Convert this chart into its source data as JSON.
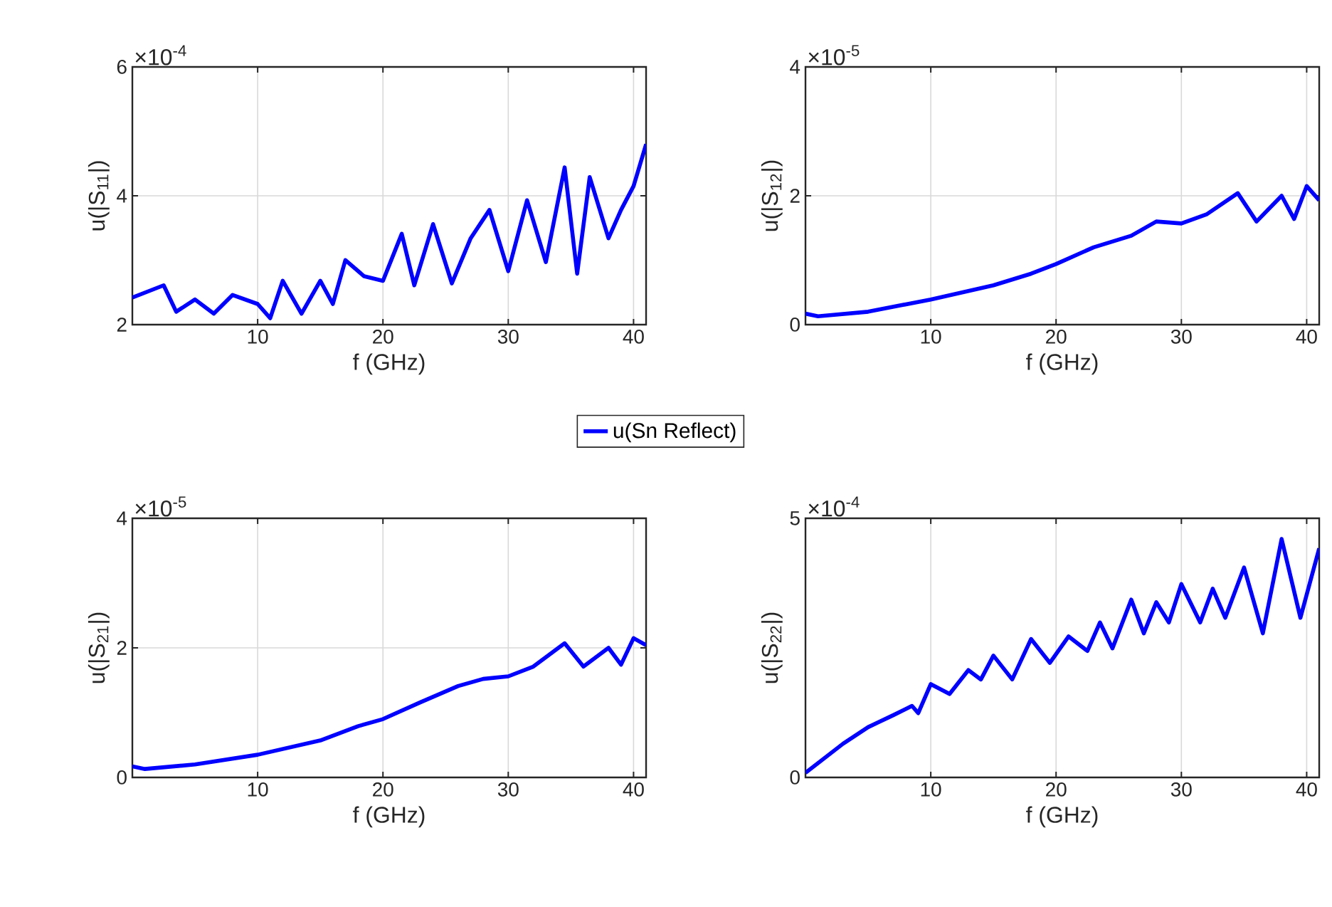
{
  "chart_data": [
    {
      "type": "line",
      "xlabel": "f (GHz)",
      "ylabel": "u(|S$_{11}$|)",
      "annotations": [
        "×10$^{-4}$"
      ],
      "xlim": [
        0,
        41
      ],
      "ylim": [
        2,
        6
      ],
      "xticks": [
        10,
        20,
        30,
        40
      ],
      "yticks": [
        2,
        4,
        6
      ],
      "grid": true,
      "legend": "bottom right",
      "series": [
        {
          "name": "u(Sn Reflect)",
          "color": "#0000ff",
          "x": [
            0,
            2.5,
            3.5,
            5,
            6.5,
            8,
            10,
            11,
            12,
            13.5,
            15,
            16,
            17,
            18.5,
            20,
            21.5,
            22.5,
            24,
            25.5,
            27,
            28.5,
            30,
            31.5,
            33,
            34.5,
            35.5,
            36.5,
            38,
            39,
            40,
            41
          ],
          "values": [
            2.42,
            2.61,
            2.2,
            2.39,
            2.17,
            2.46,
            2.32,
            2.1,
            2.68,
            2.17,
            2.68,
            2.32,
            3.0,
            2.75,
            2.68,
            3.41,
            2.61,
            3.56,
            2.64,
            3.34,
            3.78,
            2.83,
            3.93,
            2.97,
            4.44,
            2.79,
            4.29,
            3.34,
            3.78,
            4.15,
            4.8
          ]
        }
      ]
    },
    {
      "type": "line",
      "xlabel": "f (GHz)",
      "ylabel": "u(|S$_{12}$|)",
      "annotations": [
        "×10$^{-5}$"
      ],
      "xlim": [
        0,
        41
      ],
      "ylim": [
        0,
        4
      ],
      "xticks": [
        10,
        20,
        30,
        40
      ],
      "yticks": [
        0,
        2,
        4
      ],
      "grid": true,
      "series": [
        {
          "color": "#0000ff",
          "x": [
            0,
            1,
            5,
            10,
            15,
            18,
            20,
            23,
            26,
            28,
            30,
            32,
            34.5,
            36,
            38,
            39,
            40,
            41
          ],
          "values": [
            0.17,
            0.13,
            0.2,
            0.39,
            0.61,
            0.79,
            0.94,
            1.2,
            1.38,
            1.6,
            1.57,
            1.71,
            2.04,
            1.6,
            2.0,
            1.64,
            2.15,
            1.93
          ]
        }
      ]
    },
    {
      "type": "line",
      "xlabel": "f (GHz)",
      "ylabel": "u(|S$_{21}$|)",
      "annotations": [
        "×10$^{-5}$"
      ],
      "xlim": [
        0,
        41
      ],
      "ylim": [
        0,
        4
      ],
      "xticks": [
        10,
        20,
        30,
        40
      ],
      "yticks": [
        0,
        2,
        4
      ],
      "grid": true,
      "series": [
        {
          "color": "#0000ff",
          "x": [
            0,
            1,
            5,
            10,
            15,
            18,
            20,
            23,
            26,
            28,
            30,
            32,
            34.5,
            36,
            38,
            39,
            40,
            41
          ],
          "values": [
            0.17,
            0.13,
            0.2,
            0.35,
            0.57,
            0.79,
            0.9,
            1.16,
            1.41,
            1.52,
            1.56,
            1.71,
            2.07,
            1.71,
            2.0,
            1.74,
            2.15,
            2.04
          ]
        }
      ]
    },
    {
      "type": "line",
      "xlabel": "f (GHz)",
      "ylabel": "u(|S$_{22}$|)",
      "annotations": [
        "×10$^{-4}$"
      ],
      "xlim": [
        0,
        41
      ],
      "ylim": [
        0,
        5
      ],
      "xticks": [
        10,
        20,
        30,
        40
      ],
      "yticks": [
        0,
        5
      ],
      "grid": true,
      "series": [
        {
          "color": "#0000ff",
          "x": [
            0,
            3,
            5,
            7,
            8.5,
            9,
            10,
            11.5,
            13,
            14,
            15,
            16.5,
            18,
            19.5,
            21,
            22.5,
            23.5,
            24.5,
            26,
            27,
            28,
            29,
            30,
            31.5,
            32.5,
            33.5,
            35,
            36.5,
            38,
            39.5,
            41
          ],
          "values": [
            0.09,
            0.65,
            0.97,
            1.2,
            1.38,
            1.24,
            1.8,
            1.61,
            2.07,
            1.89,
            2.35,
            1.89,
            2.67,
            2.21,
            2.72,
            2.44,
            2.99,
            2.49,
            3.43,
            2.78,
            3.38,
            2.99,
            3.73,
            2.99,
            3.64,
            3.08,
            4.05,
            2.78,
            4.6,
            3.08,
            4.42
          ]
        }
      ]
    }
  ]
}
